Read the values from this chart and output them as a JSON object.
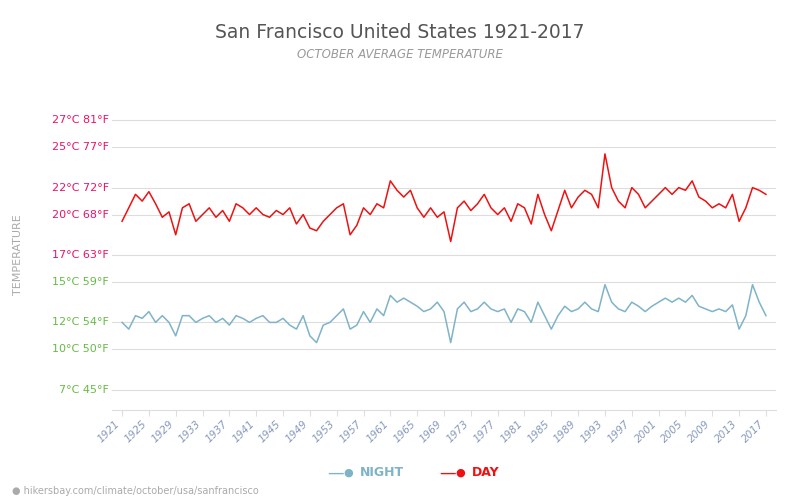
{
  "title": "San Francisco United States 1921-2017",
  "subtitle": "OCTOBER AVERAGE TEMPERATURE",
  "ylabel": "TEMPERATURE",
  "footer": "hikersbay.com/climate/october/usa/sanfrancisco",
  "years": [
    1921,
    1922,
    1923,
    1924,
    1925,
    1926,
    1927,
    1928,
    1929,
    1930,
    1931,
    1932,
    1933,
    1934,
    1935,
    1936,
    1937,
    1938,
    1939,
    1940,
    1941,
    1942,
    1943,
    1944,
    1945,
    1946,
    1947,
    1948,
    1949,
    1950,
    1951,
    1952,
    1953,
    1954,
    1955,
    1956,
    1957,
    1958,
    1959,
    1960,
    1961,
    1962,
    1963,
    1964,
    1965,
    1966,
    1967,
    1968,
    1969,
    1970,
    1971,
    1972,
    1973,
    1974,
    1975,
    1976,
    1977,
    1978,
    1979,
    1980,
    1981,
    1982,
    1983,
    1984,
    1985,
    1986,
    1987,
    1988,
    1989,
    1990,
    1991,
    1992,
    1993,
    1994,
    1995,
    1996,
    1997,
    1998,
    1999,
    2000,
    2001,
    2002,
    2003,
    2004,
    2005,
    2006,
    2007,
    2008,
    2009,
    2010,
    2011,
    2012,
    2013,
    2014,
    2015,
    2016,
    2017
  ],
  "day_temps": [
    19.5,
    20.5,
    21.5,
    21.0,
    21.7,
    20.8,
    19.8,
    20.2,
    18.5,
    20.5,
    20.8,
    19.5,
    20.0,
    20.5,
    19.8,
    20.3,
    19.5,
    20.8,
    20.5,
    20.0,
    20.5,
    20.0,
    19.8,
    20.3,
    20.0,
    20.5,
    19.3,
    20.0,
    19.0,
    18.8,
    19.5,
    20.0,
    20.5,
    20.8,
    18.5,
    19.2,
    20.5,
    20.0,
    20.8,
    20.5,
    22.5,
    21.8,
    21.3,
    21.8,
    20.5,
    19.8,
    20.5,
    19.8,
    20.2,
    18.0,
    20.5,
    21.0,
    20.3,
    20.8,
    21.5,
    20.5,
    20.0,
    20.5,
    19.5,
    20.8,
    20.5,
    19.3,
    21.5,
    20.0,
    18.8,
    20.3,
    21.8,
    20.5,
    21.3,
    21.8,
    21.5,
    20.5,
    24.5,
    22.0,
    21.0,
    20.5,
    22.0,
    21.5,
    20.5,
    21.0,
    21.5,
    22.0,
    21.5,
    22.0,
    21.8,
    22.5,
    21.3,
    21.0,
    20.5,
    20.8,
    20.5,
    21.5,
    19.5,
    20.5,
    22.0,
    21.8,
    21.5
  ],
  "night_temps": [
    12.0,
    11.5,
    12.5,
    12.3,
    12.8,
    12.0,
    12.5,
    12.0,
    11.0,
    12.5,
    12.5,
    12.0,
    12.3,
    12.5,
    12.0,
    12.3,
    11.8,
    12.5,
    12.3,
    12.0,
    12.3,
    12.5,
    12.0,
    12.0,
    12.3,
    11.8,
    11.5,
    12.5,
    11.0,
    10.5,
    11.8,
    12.0,
    12.5,
    13.0,
    11.5,
    11.8,
    12.8,
    12.0,
    13.0,
    12.5,
    14.0,
    13.5,
    13.8,
    13.5,
    13.2,
    12.8,
    13.0,
    13.5,
    12.8,
    10.5,
    13.0,
    13.5,
    12.8,
    13.0,
    13.5,
    13.0,
    12.8,
    13.0,
    12.0,
    13.0,
    12.8,
    12.0,
    13.5,
    12.5,
    11.5,
    12.5,
    13.2,
    12.8,
    13.0,
    13.5,
    13.0,
    12.8,
    14.8,
    13.5,
    13.0,
    12.8,
    13.5,
    13.2,
    12.8,
    13.2,
    13.5,
    13.8,
    13.5,
    13.8,
    13.5,
    14.0,
    13.2,
    13.0,
    12.8,
    13.0,
    12.8,
    13.3,
    11.5,
    12.5,
    14.8,
    13.5,
    12.5
  ],
  "day_color": "#ee1111",
  "night_color": "#7fb3c8",
  "title_color": "#555555",
  "subtitle_color": "#999999",
  "ylabel_color": "#aaaaaa",
  "ytick_color_red": "#ee1166",
  "ytick_color_green": "#66bb44",
  "grid_color": "#dddddd",
  "background_color": "#ffffff",
  "xtick_color": "#8899bb",
  "yticks_celsius": [
    7,
    10,
    12,
    15,
    17,
    20,
    22,
    25,
    27
  ],
  "yticks_fahrenheit": [
    45,
    50,
    54,
    59,
    63,
    68,
    72,
    77,
    81
  ],
  "ylim_celsius": [
    5.5,
    28.5
  ],
  "legend_night": "NIGHT",
  "legend_day": "DAY",
  "footer_text_color": "#aaaaaa",
  "footer_icon_color": "#ff4444",
  "xtick_years": [
    1921,
    1925,
    1929,
    1933,
    1937,
    1941,
    1945,
    1949,
    1953,
    1957,
    1961,
    1965,
    1969,
    1973,
    1977,
    1981,
    1985,
    1989,
    1993,
    1997,
    2001,
    2005,
    2009,
    2013,
    2017
  ]
}
